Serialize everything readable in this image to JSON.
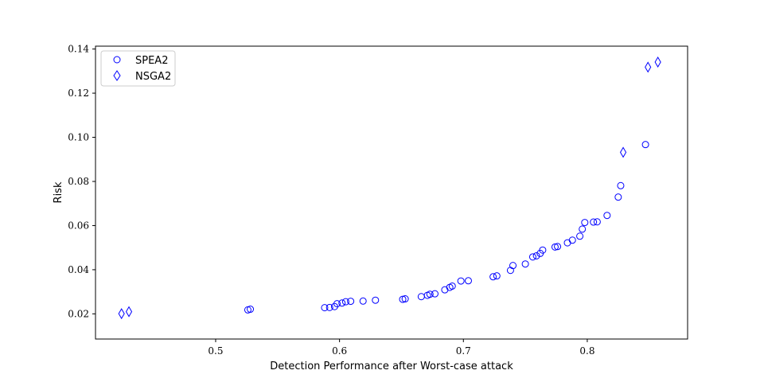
{
  "chart_data": {
    "type": "scatter",
    "xlabel": "Detection Performance after Worst-case attack",
    "ylabel": "Risk",
    "xlim": [
      0.403,
      0.881
    ],
    "ylim": [
      0.0086,
      0.1413
    ],
    "xticks": [
      0.5,
      0.6,
      0.7,
      0.8
    ],
    "xtick_labels": [
      "0.5",
      "0.6",
      "0.7",
      "0.8"
    ],
    "yticks": [
      0.02,
      0.04,
      0.06,
      0.08,
      0.1,
      0.12,
      0.14
    ],
    "ytick_labels": [
      "0.02",
      "0.04",
      "0.06",
      "0.08",
      "0.10",
      "0.12",
      "0.14"
    ],
    "grid": false,
    "legend_position": "top-left",
    "series": [
      {
        "name": "SPEA2",
        "marker": "circle",
        "color": "#0000ff",
        "x": [
          0.526,
          0.528,
          0.588,
          0.592,
          0.596,
          0.598,
          0.602,
          0.605,
          0.609,
          0.619,
          0.629,
          0.651,
          0.653,
          0.666,
          0.671,
          0.673,
          0.677,
          0.685,
          0.689,
          0.691,
          0.698,
          0.704,
          0.724,
          0.727,
          0.738,
          0.74,
          0.75,
          0.756,
          0.759,
          0.762,
          0.764,
          0.774,
          0.776,
          0.784,
          0.788,
          0.794,
          0.796,
          0.798,
          0.805,
          0.808,
          0.816,
          0.825,
          0.827,
          0.847
        ],
        "y": [
          0.0218,
          0.0221,
          0.0228,
          0.0229,
          0.0233,
          0.0246,
          0.0249,
          0.0255,
          0.0257,
          0.0258,
          0.0262,
          0.0266,
          0.0268,
          0.0278,
          0.0284,
          0.0289,
          0.0291,
          0.0309,
          0.032,
          0.0326,
          0.0349,
          0.035,
          0.0368,
          0.0372,
          0.0397,
          0.0419,
          0.0426,
          0.0458,
          0.0463,
          0.0474,
          0.0489,
          0.0503,
          0.0505,
          0.0522,
          0.0534,
          0.0552,
          0.0584,
          0.0614,
          0.0616,
          0.0617,
          0.0646,
          0.0729,
          0.0781,
          0.0967
        ]
      },
      {
        "name": "NSGA2",
        "marker": "diamond",
        "color": "#0000ff",
        "x": [
          0.424,
          0.43,
          0.829,
          0.849,
          0.857
        ],
        "y": [
          0.0201,
          0.021,
          0.0932,
          0.1318,
          0.1341
        ]
      }
    ]
  }
}
